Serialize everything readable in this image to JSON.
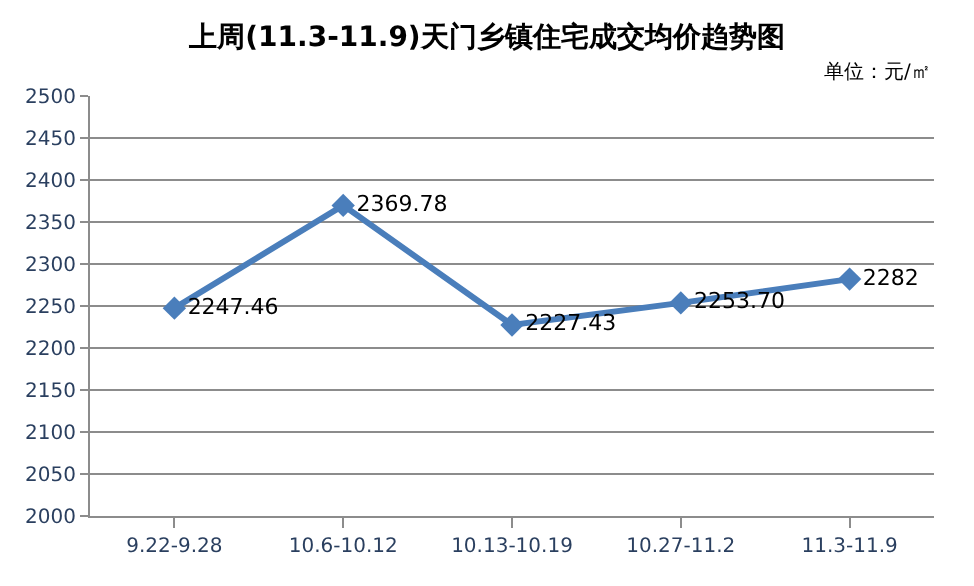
{
  "chart_data": {
    "type": "line",
    "title": "上周(11.3-11.9)天门乡镇住宅成交均价趋势图",
    "annotations": [
      "单位：元/㎡"
    ],
    "categories": [
      "9.22-9.28",
      "10.6-10.12",
      "10.13-10.19",
      "10.27-11.2",
      "11.3-11.9"
    ],
    "series": [
      {
        "color": "#4a7ebb",
        "values": [
          2247.46,
          2369.78,
          2227.43,
          2253.7,
          2282
        ],
        "value_labels": [
          "2247.46",
          "2369.78",
          "2227.43",
          "2253.70",
          "2282"
        ]
      }
    ],
    "ylim": [
      2000,
      2500
    ],
    "yticks": [
      2000,
      2050,
      2100,
      2150,
      2200,
      2250,
      2300,
      2350,
      2400,
      2450,
      2500
    ],
    "grid": "y",
    "marker": "diamond",
    "line_style": "solid",
    "legend": false
  }
}
